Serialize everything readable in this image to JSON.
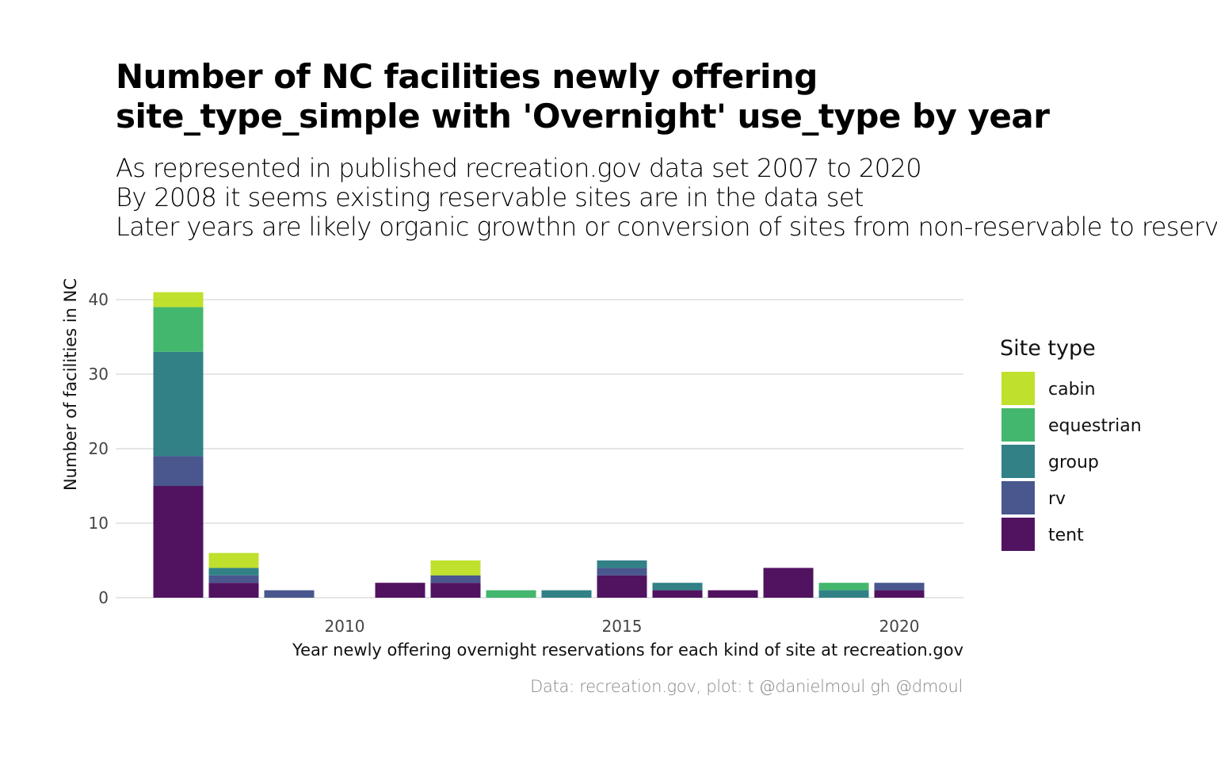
{
  "header": {
    "title_lines": [
      "Number of NC facilities newly offering",
      "site_type_simple with 'Overnight' use_type by year"
    ],
    "subtitle_lines": [
      "As represented in published recreation.gov data set 2007 to 2020",
      "By 2008 it seems existing reservable sites are in the data set",
      "Later years are likely organic growthn or conversion of sites from non-reservable to reservable"
    ]
  },
  "caption": "Data: recreation.gov, plot: t @danielmoul gh @dmoul",
  "chart_data": {
    "type": "bar",
    "stacked": true,
    "x": [
      2007,
      2008,
      2009,
      2010,
      2011,
      2012,
      2013,
      2014,
      2015,
      2016,
      2017,
      2018,
      2019,
      2020
    ],
    "x_ticks": [
      2010,
      2015,
      2020
    ],
    "y_ticks": [
      0,
      10,
      20,
      30,
      40
    ],
    "ylim": [
      0,
      42
    ],
    "xlabel": "Year newly offering overnight reservations for each kind of site at recreation.gov",
    "ylabel": "Number of facilities in NC",
    "grid": true,
    "legend": {
      "title": "Site type",
      "placement": "right",
      "entries": [
        "cabin",
        "equestrian",
        "group",
        "rv",
        "tent"
      ]
    },
    "series": [
      {
        "name": "tent",
        "color": "#440154",
        "values": [
          15,
          2,
          0,
          0,
          2,
          2,
          0,
          0,
          3,
          1,
          1,
          4,
          0,
          1
        ]
      },
      {
        "name": "rv",
        "color": "#3b4a85",
        "values": [
          4,
          1,
          1,
          0,
          0,
          1,
          0,
          0,
          1,
          0,
          0,
          0,
          0,
          1
        ]
      },
      {
        "name": "group",
        "color": "#21777e",
        "values": [
          14,
          1,
          0,
          0,
          0,
          0,
          0,
          1,
          1,
          1,
          0,
          0,
          1,
          0
        ]
      },
      {
        "name": "equestrian",
        "color": "#35b262",
        "values": [
          6,
          0,
          0,
          0,
          0,
          0,
          1,
          0,
          0,
          0,
          0,
          0,
          1,
          0
        ]
      },
      {
        "name": "cabin",
        "color": "#bade1c",
        "values": [
          2,
          2,
          0,
          0,
          0,
          2,
          0,
          0,
          0,
          0,
          0,
          0,
          0,
          0
        ]
      }
    ]
  }
}
